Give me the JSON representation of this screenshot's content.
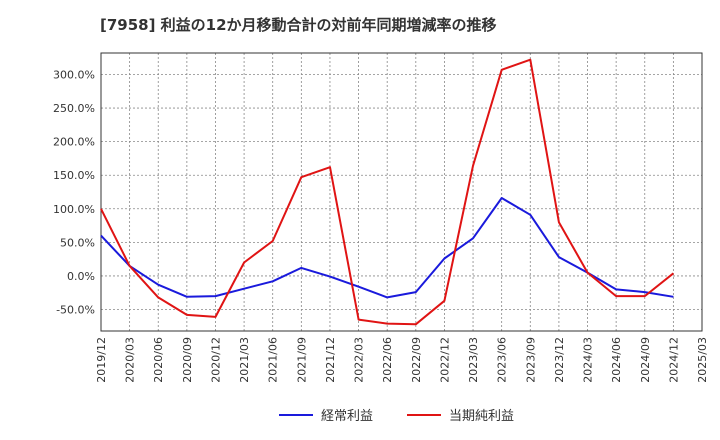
{
  "chart_data": {
    "type": "line",
    "title": "[7958]  利益の12か月移動合計の対前年同期増減率の推移",
    "xlabel": "",
    "ylabel": "",
    "ylim": [
      -82,
      332
    ],
    "yticks": [
      -50,
      0,
      50,
      100,
      150,
      200,
      250,
      300
    ],
    "ytick_labels": [
      "-50.0%",
      "0.0%",
      "50.0%",
      "100.0%",
      "150.0%",
      "200.0%",
      "250.0%",
      "300.0%"
    ],
    "xticks": [
      "2019/12",
      "2020/03",
      "2020/06",
      "2020/09",
      "2020/12",
      "2021/03",
      "2021/06",
      "2021/09",
      "2021/12",
      "2022/03",
      "2022/06",
      "2022/09",
      "2022/12",
      "2023/03",
      "2023/06",
      "2023/09",
      "2023/12",
      "2024/03",
      "2024/06",
      "2024/09",
      "2024/12",
      "2025/03"
    ],
    "grid": true,
    "legend_position": "bottom",
    "series": [
      {
        "name": "経常利益",
        "color": "#1a1adc",
        "points": [
          [
            "2019/12",
            60
          ],
          [
            "2020/03",
            15
          ],
          [
            "2020/06",
            -13
          ],
          [
            "2020/09",
            -31
          ],
          [
            "2020/12",
            -30
          ],
          [
            "2021/03",
            -19
          ],
          [
            "2021/06",
            -8
          ],
          [
            "2021/09",
            12
          ],
          [
            "2021/12",
            -1
          ],
          [
            "2022/03",
            -16
          ],
          [
            "2022/06",
            -32
          ],
          [
            "2022/09",
            -24
          ],
          [
            "2022/12",
            26
          ],
          [
            "2023/03",
            56
          ],
          [
            "2023/06",
            116
          ],
          [
            "2023/09",
            91
          ],
          [
            "2023/12",
            28
          ],
          [
            "2024/03",
            5
          ],
          [
            "2024/06",
            -20
          ],
          [
            "2024/09",
            -24
          ],
          [
            "2024/12",
            -31
          ]
        ]
      },
      {
        "name": "当期純利益",
        "color": "#e01414",
        "points": [
          [
            "2019/12",
            100
          ],
          [
            "2020/03",
            15
          ],
          [
            "2020/06",
            -32
          ],
          [
            "2020/09",
            -58
          ],
          [
            "2020/12",
            -61
          ],
          [
            "2021/03",
            20
          ],
          [
            "2021/06",
            52
          ],
          [
            "2021/09",
            147
          ],
          [
            "2021/12",
            162
          ],
          [
            "2022/03",
            -65
          ],
          [
            "2022/06",
            -71
          ],
          [
            "2022/09",
            -72
          ],
          [
            "2022/12",
            -37
          ],
          [
            "2023/03",
            164
          ],
          [
            "2023/06",
            307
          ],
          [
            "2023/09",
            322
          ],
          [
            "2023/12",
            80
          ],
          [
            "2024/03",
            5
          ],
          [
            "2024/06",
            -30
          ],
          [
            "2024/09",
            -30
          ],
          [
            "2024/12",
            4
          ]
        ]
      }
    ]
  }
}
